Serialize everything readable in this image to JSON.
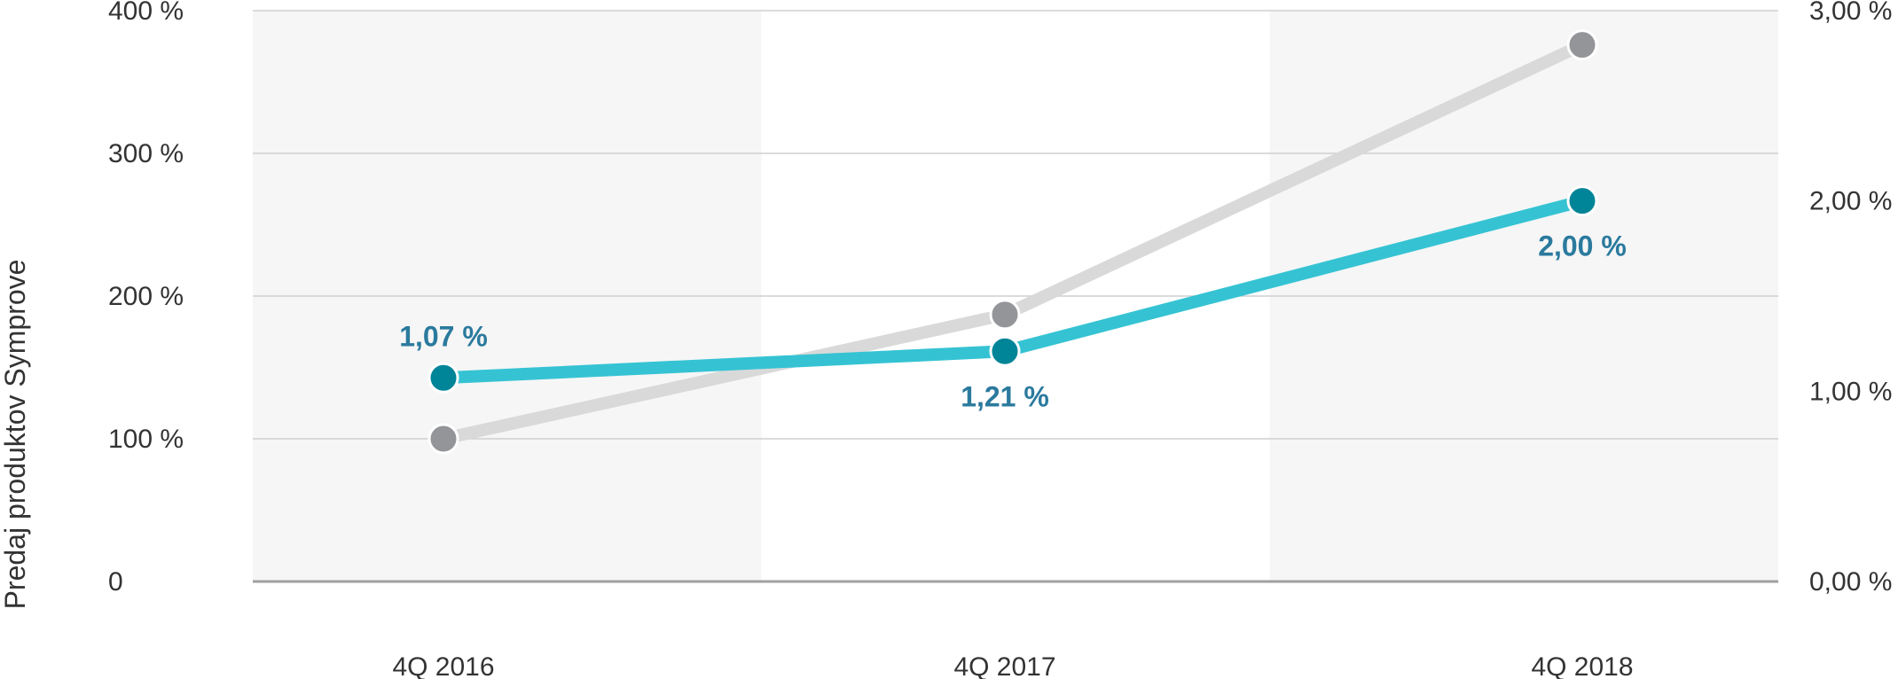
{
  "chart_data": {
    "type": "line",
    "title": "",
    "xlabel": "",
    "ylabel": "Predaj produktov Symprove",
    "categories": [
      "4Q 2016",
      "4Q 2017",
      "4Q 2018"
    ],
    "left_axis": {
      "range": [
        0,
        400
      ],
      "ticks": [
        0,
        100,
        200,
        300,
        400
      ],
      "tick_labels": [
        "0",
        "100 %",
        "200 %",
        "300 %",
        "400 %"
      ]
    },
    "right_axis": {
      "range": [
        0,
        3
      ],
      "ticks": [
        0,
        1,
        2,
        3
      ],
      "tick_labels": [
        "0,00 %",
        "1,00 %",
        "2,00 %",
        "3,00 %"
      ]
    },
    "series": [
      {
        "axis": "left",
        "values": [
          100,
          187,
          376
        ],
        "line_color": "#d9d9d9",
        "marker_color": "#939598"
      },
      {
        "axis": "right",
        "values": [
          1.07,
          1.21,
          2.0
        ],
        "data_labels": [
          "1,07 %",
          "1,21 %",
          "2,00 %"
        ],
        "label_positions": [
          "above",
          "below",
          "below"
        ],
        "line_color": "#35c3d3",
        "marker_color": "#008497",
        "label_color": "#2b7a9e"
      }
    ],
    "band_shading": [
      true,
      false,
      true
    ],
    "band_color": "#f6f6f6",
    "grid": true,
    "grid_color": "#cfcfcf",
    "baseline_color": "#a0a0a0"
  }
}
